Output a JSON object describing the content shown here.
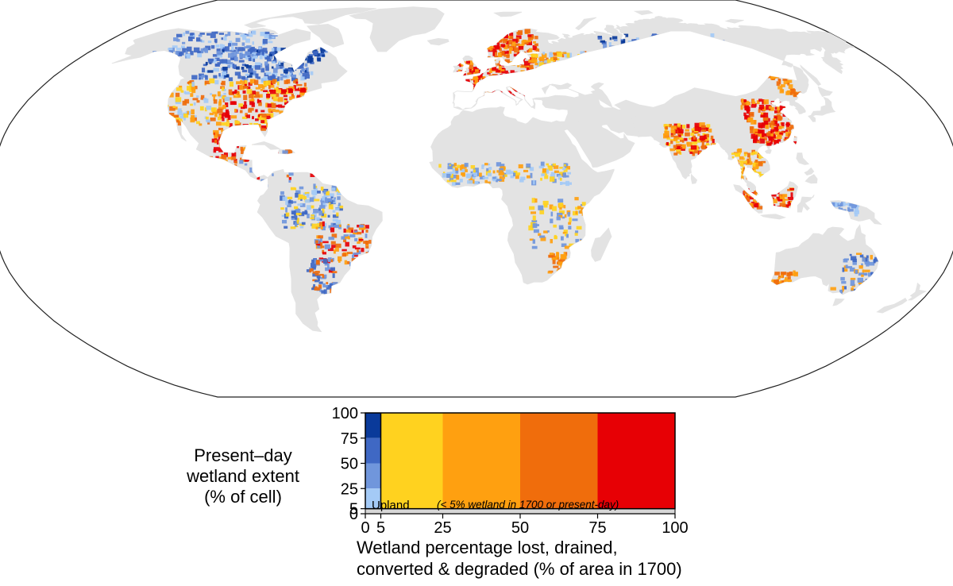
{
  "map": {
    "projection": "robinson",
    "land_color": "#e3e3e3",
    "outline_color": "#222222"
  },
  "legend": {
    "y_title_lines": [
      "Present–day",
      "wetland extent",
      "(% of cell)"
    ],
    "y_ticks": [
      "100",
      "75",
      "50",
      "25",
      "5",
      "0"
    ],
    "x_ticks": [
      "0",
      "5",
      "25",
      "50",
      "75",
      "100"
    ],
    "x_title_lines": [
      "Wetland percentage lost, drained,",
      "converted & degraded  (% of area in 1700)"
    ],
    "upland_label": "Upland",
    "upland_note": "(< 5% wetland in 1700 or present-day)",
    "blue_colors": [
      "#0a3a9a",
      "#3f68c4",
      "#7096dc",
      "#a4caf6"
    ],
    "loss_colors": [
      "#ffd21f",
      "#ffa010",
      "#f06d0c",
      "#e70005"
    ],
    "upland_color": "#d7d7d7"
  },
  "chart_data": {
    "type": "heatmap",
    "x_label_lines": [
      "Wetland percentage lost, drained,",
      "converted & degraded  (% of area in 1700)"
    ],
    "y_label_lines": [
      "Present–day",
      "wetland extent",
      "(% of cell)"
    ],
    "x_bins": [
      [
        0,
        5
      ],
      [
        5,
        25
      ],
      [
        25,
        50
      ],
      [
        50,
        75
      ],
      [
        75,
        100
      ]
    ],
    "y_bins": [
      [
        0,
        5
      ],
      [
        5,
        25
      ],
      [
        25,
        50
      ],
      [
        50,
        75
      ],
      [
        75,
        100
      ]
    ],
    "categories": [
      {
        "x": [
          0,
          5
        ],
        "y": [
          75,
          100
        ],
        "color": "#0a3a9a"
      },
      {
        "x": [
          0,
          5
        ],
        "y": [
          50,
          75
        ],
        "color": "#3f68c4"
      },
      {
        "x": [
          0,
          5
        ],
        "y": [
          25,
          50
        ],
        "color": "#7096dc"
      },
      {
        "x": [
          0,
          5
        ],
        "y": [
          5,
          25
        ],
        "color": "#a4caf6"
      },
      {
        "x": [
          5,
          25
        ],
        "y": [
          5,
          100
        ],
        "color": "#ffd21f"
      },
      {
        "x": [
          25,
          50
        ],
        "y": [
          5,
          100
        ],
        "color": "#ffa010"
      },
      {
        "x": [
          50,
          75
        ],
        "y": [
          5,
          100
        ],
        "color": "#f06d0c"
      },
      {
        "x": [
          75,
          100
        ],
        "y": [
          5,
          100
        ],
        "color": "#e70005"
      },
      {
        "x": [
          0,
          100
        ],
        "y": [
          0,
          5
        ],
        "color": "#d7d7d7",
        "label": "Upland"
      }
    ]
  }
}
